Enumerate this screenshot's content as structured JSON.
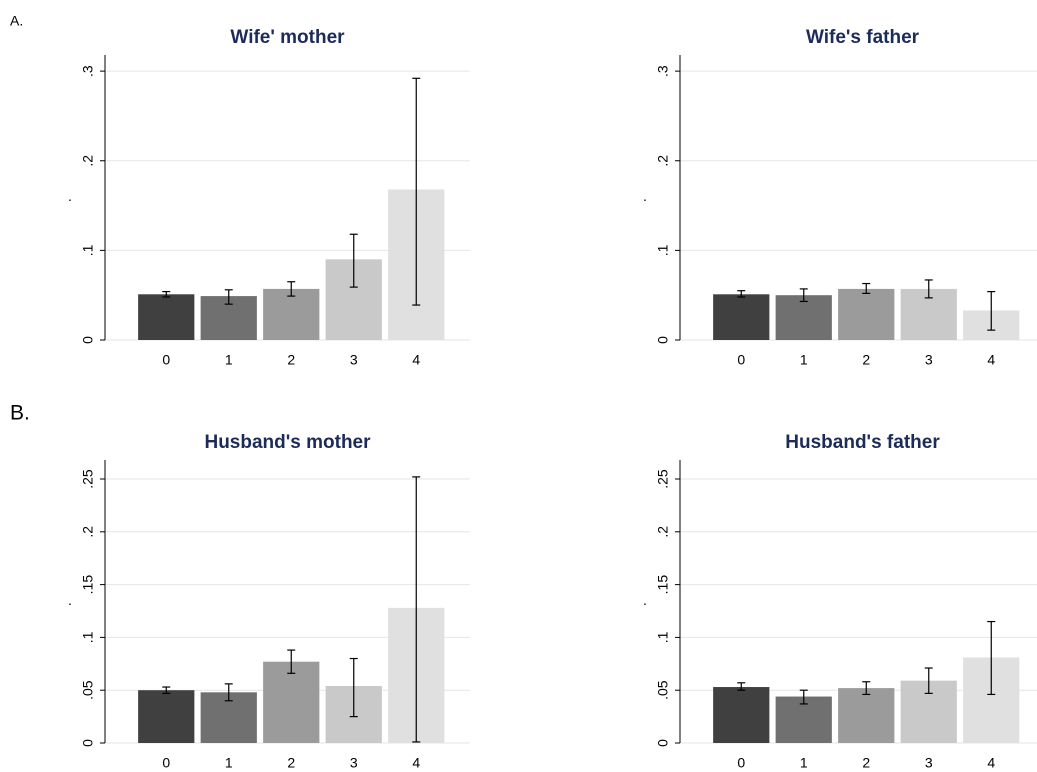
{
  "panel_labels": [
    "A.",
    "B."
  ],
  "chart_data": [
    {
      "type": "bar",
      "title": "Wife' mother",
      "ylabel": ".",
      "categories": [
        "0",
        "1",
        "2",
        "3",
        "4"
      ],
      "values": [
        0.051,
        0.049,
        0.057,
        0.09,
        0.168
      ],
      "ci_low": [
        0.048,
        0.04,
        0.049,
        0.059,
        0.039
      ],
      "ci_high": [
        0.054,
        0.056,
        0.065,
        0.118,
        0.292
      ],
      "colors": [
        "#404040",
        "#707070",
        "#9b9b9b",
        "#c9c9c9",
        "#e0e0e0"
      ],
      "ylim": [
        0,
        0.318
      ],
      "yticks": [
        0,
        {
          "value": 0.1,
          "label": ".1"
        },
        {
          "value": 0.2,
          "label": ".2"
        },
        {
          "value": 0.3,
          "label": ".3"
        }
      ],
      "grid": true
    },
    {
      "type": "bar",
      "title": "Wife's father",
      "ylabel": ".",
      "categories": [
        "0",
        "1",
        "2",
        "3",
        "4"
      ],
      "values": [
        0.051,
        0.05,
        0.057,
        0.057,
        0.033
      ],
      "ci_low": [
        0.048,
        0.043,
        0.052,
        0.047,
        0.011
      ],
      "ci_high": [
        0.055,
        0.057,
        0.063,
        0.067,
        0.054
      ],
      "colors": [
        "#404040",
        "#707070",
        "#9b9b9b",
        "#c9c9c9",
        "#e0e0e0"
      ],
      "ylim": [
        0,
        0.318
      ],
      "yticks": [
        0,
        {
          "value": 0.1,
          "label": ".1"
        },
        {
          "value": 0.2,
          "label": ".2"
        },
        {
          "value": 0.3,
          "label": ".3"
        }
      ],
      "grid": true
    },
    {
      "type": "bar",
      "title": "Husband's mother",
      "ylabel": ".",
      "categories": [
        "0",
        "1",
        "2",
        "3",
        "4"
      ],
      "values": [
        0.05,
        0.048,
        0.077,
        0.054,
        0.128
      ],
      "ci_low": [
        0.047,
        0.04,
        0.066,
        0.025,
        0.001
      ],
      "ci_high": [
        0.053,
        0.056,
        0.088,
        0.08,
        0.252
      ],
      "colors": [
        "#404040",
        "#707070",
        "#9b9b9b",
        "#c9c9c9",
        "#e0e0e0"
      ],
      "ylim": [
        0,
        0.268
      ],
      "yticks": [
        0,
        {
          "value": 0.05,
          "label": ".05"
        },
        {
          "value": 0.1,
          "label": ".1"
        },
        {
          "value": 0.15,
          "label": ".15"
        },
        {
          "value": 0.2,
          "label": ".2"
        },
        {
          "value": 0.25,
          "label": ".25"
        }
      ],
      "grid": true
    },
    {
      "type": "bar",
      "title": "Husband's father",
      "ylabel": ".",
      "categories": [
        "0",
        "1",
        "2",
        "3",
        "4"
      ],
      "values": [
        0.053,
        0.044,
        0.052,
        0.059,
        0.081
      ],
      "ci_low": [
        0.05,
        0.037,
        0.046,
        0.047,
        0.046
      ],
      "ci_high": [
        0.057,
        0.05,
        0.058,
        0.071,
        0.115
      ],
      "colors": [
        "#404040",
        "#707070",
        "#9b9b9b",
        "#c9c9c9",
        "#e0e0e0"
      ],
      "ylim": [
        0,
        0.268
      ],
      "yticks": [
        0,
        {
          "value": 0.05,
          "label": ".05"
        },
        {
          "value": 0.1,
          "label": ".1"
        },
        {
          "value": 0.15,
          "label": ".15"
        },
        {
          "value": 0.2,
          "label": ".2"
        },
        {
          "value": 0.25,
          "label": ".25"
        }
      ],
      "grid": true
    }
  ]
}
